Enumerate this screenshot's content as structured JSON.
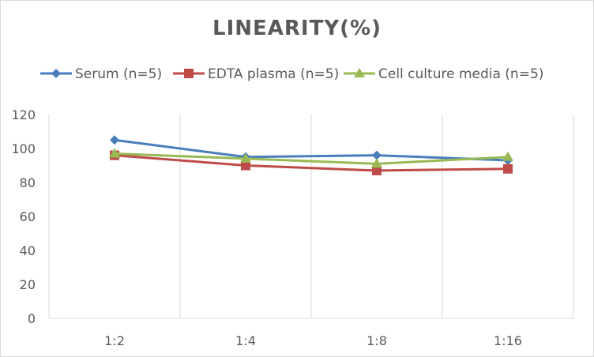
{
  "chart_data": {
    "type": "line",
    "title": "LINEARITY(%)",
    "categories": [
      "1:2",
      "1:4",
      "1:8",
      "1:16"
    ],
    "ylim": [
      0,
      120
    ],
    "yticks": [
      0,
      20,
      40,
      60,
      80,
      100,
      120
    ],
    "grid": "vertical",
    "legend": "top",
    "series": [
      {
        "name": "Serum (n=5)",
        "values": [
          105,
          95,
          96,
          93
        ],
        "color": "#4a7ebb",
        "marker": "diamond"
      },
      {
        "name": "EDTA plasma (n=5)",
        "values": [
          96,
          90,
          87,
          88
        ],
        "color": "#be4b48",
        "marker": "square"
      },
      {
        "name": "Cell culture media (n=5)",
        "values": [
          97,
          94,
          91,
          95
        ],
        "color": "#98b954",
        "marker": "triangle"
      }
    ]
  }
}
